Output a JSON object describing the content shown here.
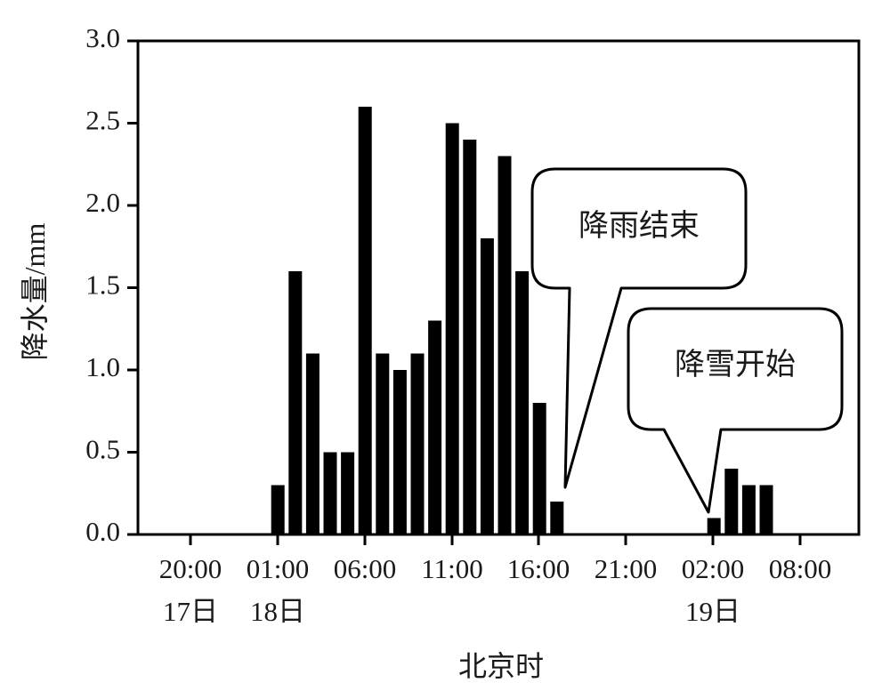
{
  "chart_data": {
    "type": "bar",
    "xlabel": "北京时",
    "ylabel": "降水量/mm",
    "ylim": [
      0,
      3.0
    ],
    "yticks": [
      "0.0",
      "0.5",
      "1.0",
      "1.5",
      "2.0",
      "2.5",
      "3.0"
    ],
    "xticks": [
      {
        "time": "20:00",
        "day": "17日"
      },
      {
        "time": "01:00",
        "day": "18日"
      },
      {
        "time": "06:00",
        "day": ""
      },
      {
        "time": "11:00",
        "day": ""
      },
      {
        "time": "16:00",
        "day": ""
      },
      {
        "time": "21:00",
        "day": ""
      },
      {
        "time": "02:00",
        "day": "19日"
      },
      {
        "time": "08:00",
        "day": ""
      }
    ],
    "bars": [
      {
        "time": "01:00",
        "value": 0.3
      },
      {
        "time": "02:00",
        "value": 1.6
      },
      {
        "time": "03:00",
        "value": 1.1
      },
      {
        "time": "04:00",
        "value": 0.5
      },
      {
        "time": "05:00",
        "value": 0.5
      },
      {
        "time": "06:00",
        "value": 2.6
      },
      {
        "time": "07:00",
        "value": 1.1
      },
      {
        "time": "08:00",
        "value": 1.0
      },
      {
        "time": "09:00",
        "value": 1.1
      },
      {
        "time": "10:00",
        "value": 1.3
      },
      {
        "time": "11:00",
        "value": 2.5
      },
      {
        "time": "12:00",
        "value": 2.4
      },
      {
        "time": "13:00",
        "value": 1.8
      },
      {
        "time": "14:00",
        "value": 2.3
      },
      {
        "time": "15:00",
        "value": 1.6
      },
      {
        "time": "16:00",
        "value": 0.8
      },
      {
        "time": "17:00",
        "value": 0.2
      },
      {
        "time": "02:00",
        "value": 0.1
      },
      {
        "time": "03:00",
        "value": 0.4
      },
      {
        "time": "04:00",
        "value": 0.3
      },
      {
        "time": "05:00",
        "value": 0.3
      }
    ],
    "annotations": [
      {
        "text": "降雨结束"
      },
      {
        "text": "降雪开始"
      }
    ],
    "bar_color": "#000000",
    "grid": false
  }
}
